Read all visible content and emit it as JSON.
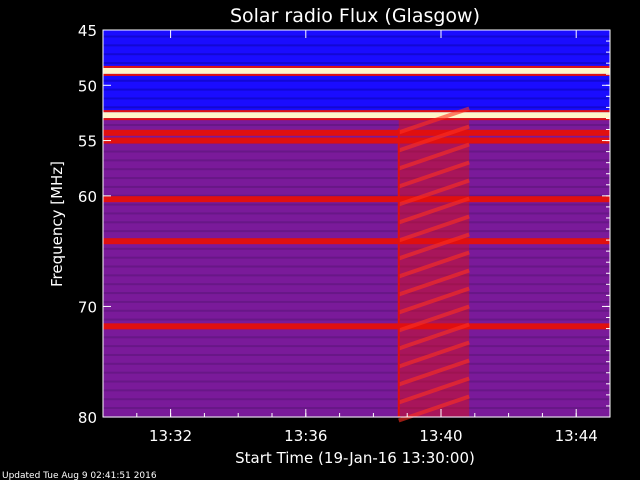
{
  "chart_data": {
    "type": "heatmap",
    "title": "Solar radio Flux (Glasgow)",
    "xlabel": "Start Time (19-Jan-16 13:30:00)",
    "ylabel": "Frequency [MHz]",
    "xlim": [
      "13:30:00",
      "13:45:00"
    ],
    "ylim": [
      80,
      45
    ],
    "x_ticks": [
      "13:32",
      "13:36",
      "13:40",
      "13:44"
    ],
    "y_ticks": [
      "45",
      "50",
      "55",
      "60",
      "70",
      "80"
    ],
    "footer": "Updated Tue Aug  9 02:41:51 2016",
    "colors": {
      "background": "#000000",
      "low": "#1a0cff",
      "mid": "#7a1a9a",
      "high": "#e01010",
      "peak": "#fff6c8"
    },
    "bright_bands_mhz": [
      48.7,
      52.7
    ],
    "strong_bands_mhz": [
      54.3,
      55.0,
      60.3,
      64.1,
      71.8
    ],
    "burst": {
      "start": "13:38:45",
      "end": "13:40:50",
      "freq_range_mhz": [
        53.0,
        80.0
      ]
    }
  }
}
